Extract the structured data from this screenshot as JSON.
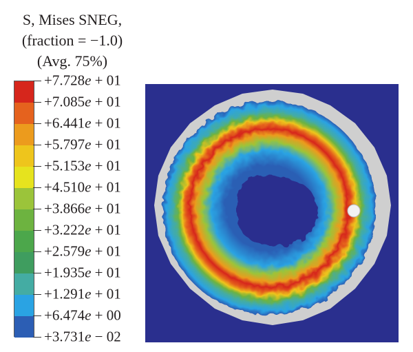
{
  "legend": {
    "title_lines": [
      "S, Mises SNEG,",
      "(fraction = −1.0)",
      "(Avg. 75%)"
    ],
    "levels": [
      {
        "mantissa": "+7.728",
        "exp": "+ 01"
      },
      {
        "mantissa": "+7.085",
        "exp": "+ 01"
      },
      {
        "mantissa": "+6.441",
        "exp": "+ 01"
      },
      {
        "mantissa": "+5.797",
        "exp": "+ 01"
      },
      {
        "mantissa": "+5.153",
        "exp": "+ 01"
      },
      {
        "mantissa": "+4.510",
        "exp": "+ 01"
      },
      {
        "mantissa": "+3.866",
        "exp": "+ 01"
      },
      {
        "mantissa": "+3.222",
        "exp": "+ 01"
      },
      {
        "mantissa": "+2.579",
        "exp": "+ 01"
      },
      {
        "mantissa": "+1.935",
        "exp": "+ 01"
      },
      {
        "mantissa": "+1.291",
        "exp": "+ 01"
      },
      {
        "mantissa": "+6.474",
        "exp": "+ 00"
      },
      {
        "mantissa": "+3.731",
        "exp": "− 02"
      }
    ],
    "colors": [
      "#d6261c",
      "#e5621e",
      "#ec9b1d",
      "#eec51c",
      "#e6e31e",
      "#9bc43a",
      "#6db340",
      "#4ca74b",
      "#3f9d5f",
      "#44aca3",
      "#2aa3e3",
      "#2c5eb4",
      "#2a2f8e"
    ]
  }
}
